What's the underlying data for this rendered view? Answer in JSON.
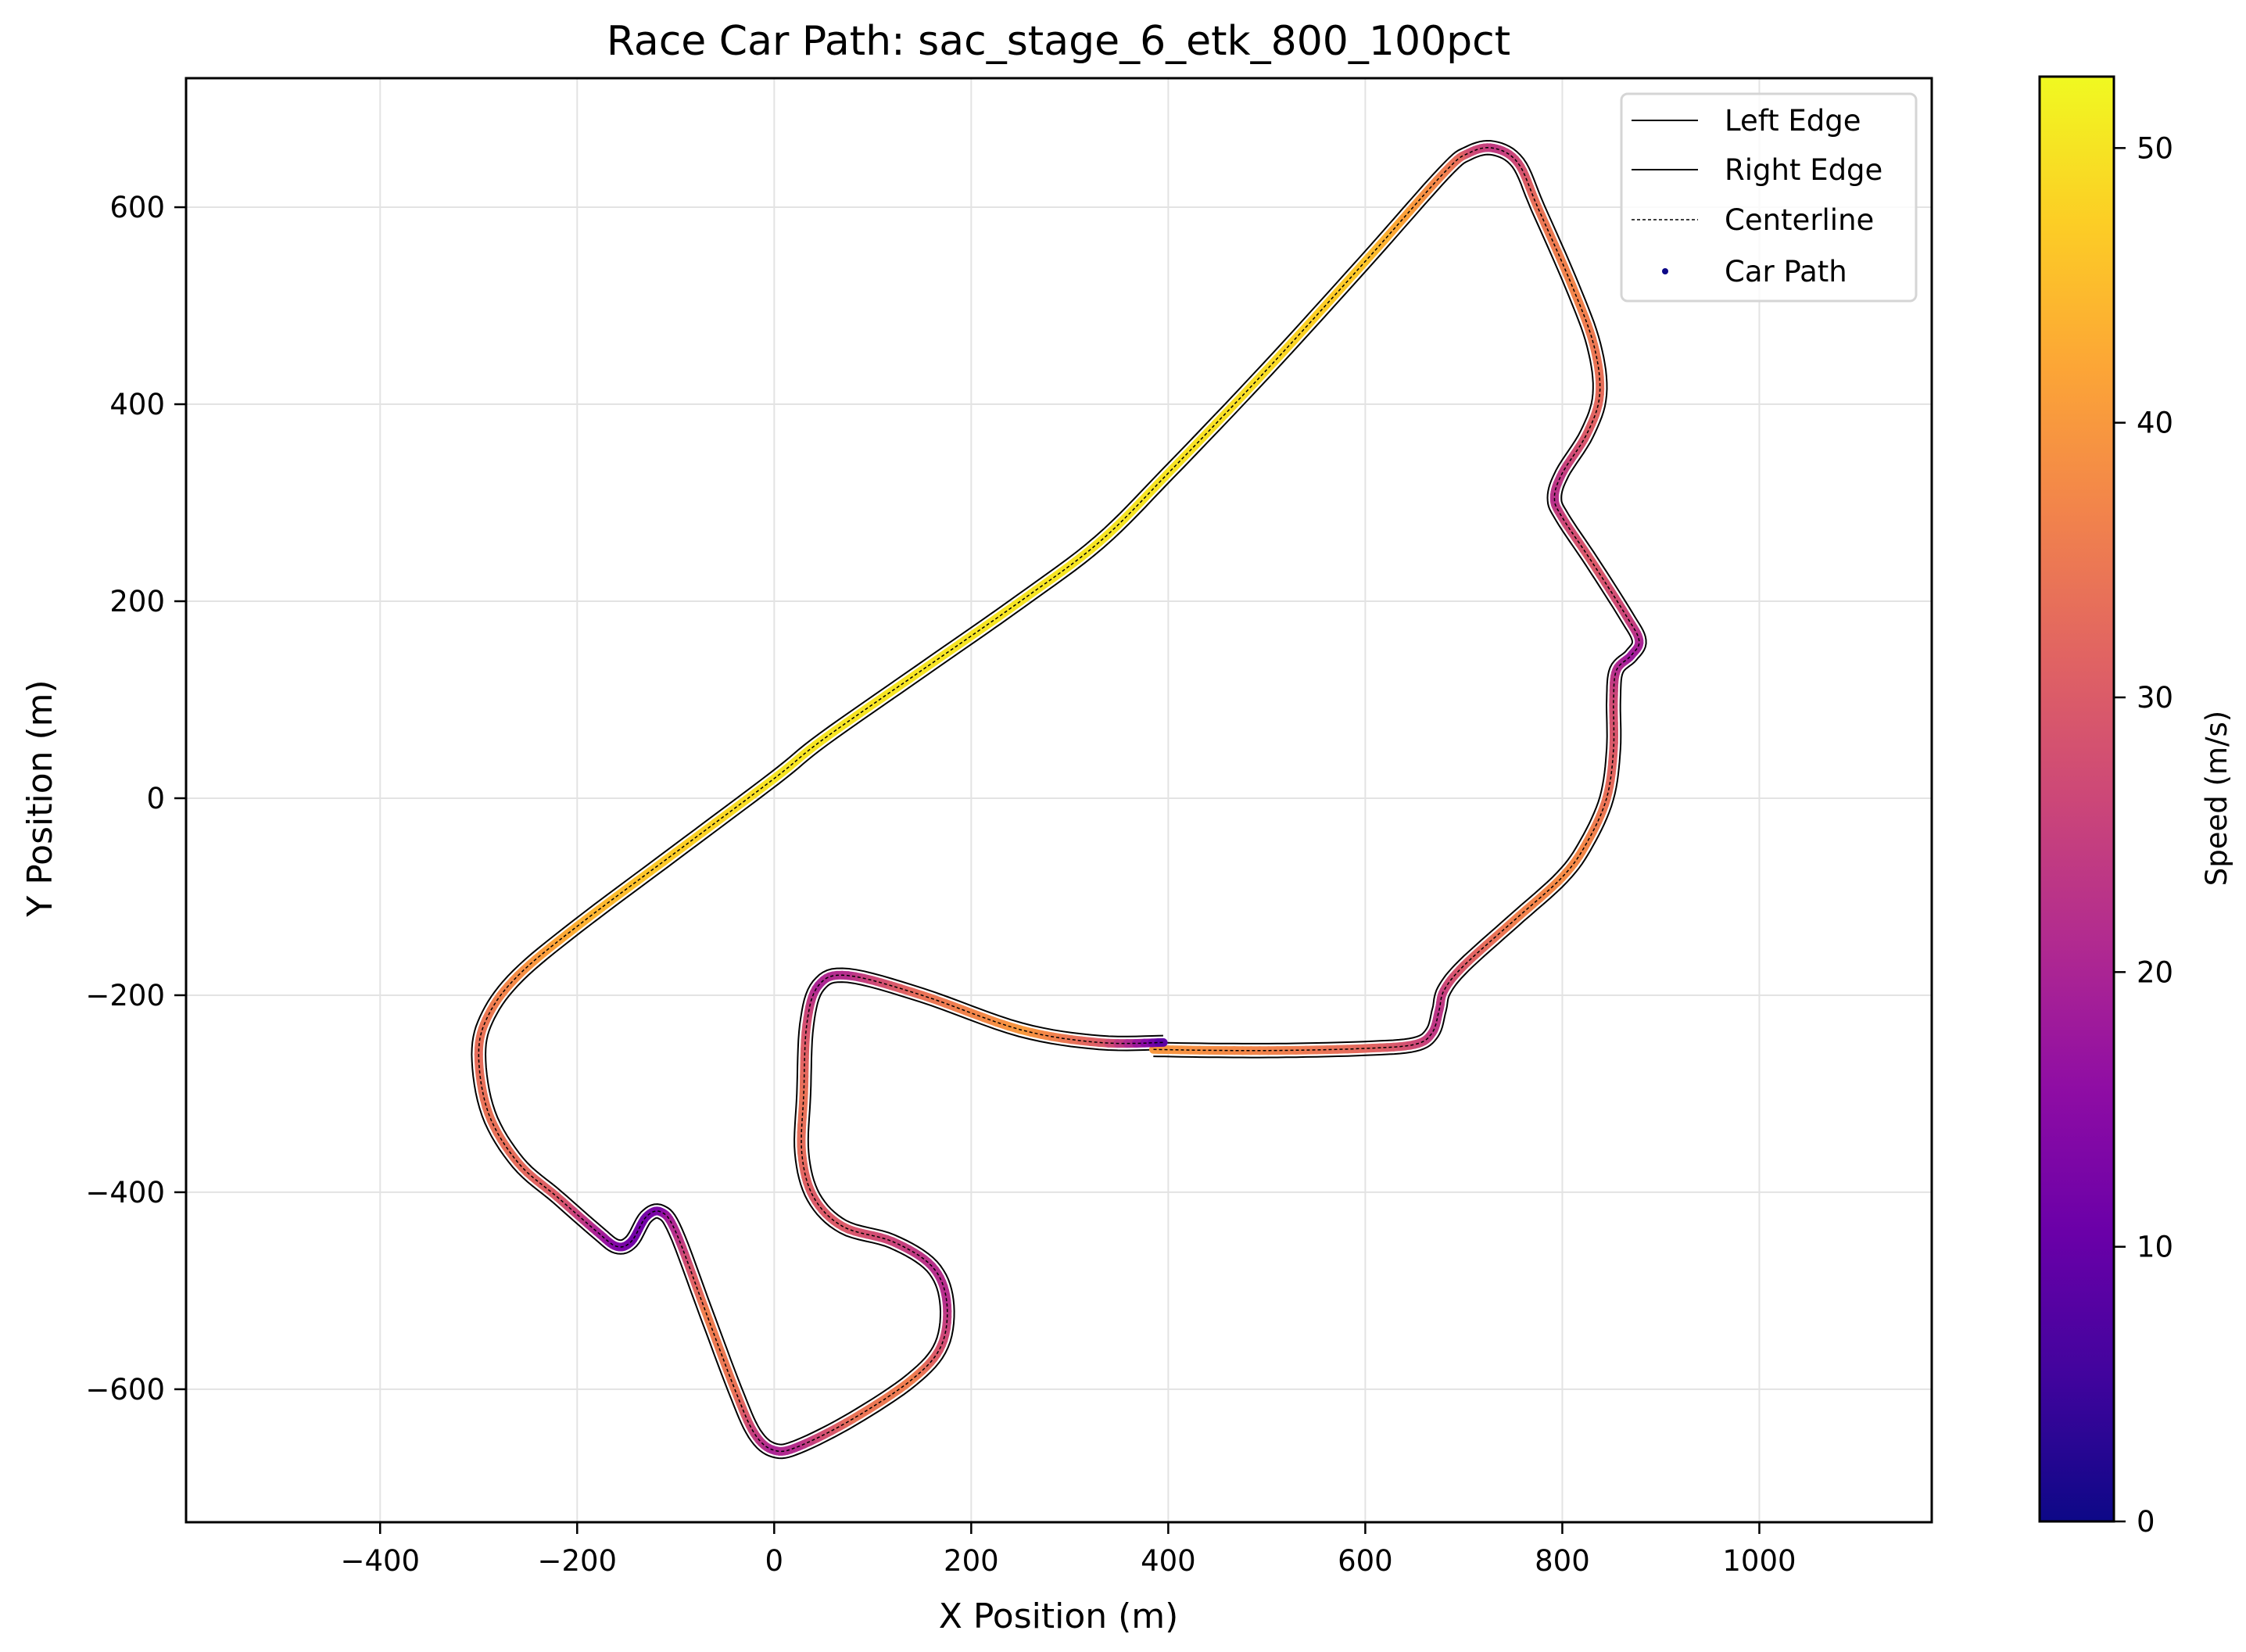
{
  "chart_data": {
    "type": "scatter",
    "title": "Race Car Path: sac_stage_6_etk_800_100pct",
    "xlabel": "X Position (m)",
    "ylabel": "Y Position (m)",
    "xlim": [
      -597,
      1175
    ],
    "ylim": [
      -735,
      731
    ],
    "xticks": [
      -400,
      -200,
      0,
      200,
      400,
      600,
      800,
      1000
    ],
    "xtick_labels": [
      "−400",
      "−200",
      "0",
      "200",
      "400",
      "600",
      "800",
      "1000"
    ],
    "yticks": [
      -600,
      -400,
      -200,
      0,
      200,
      400,
      600
    ],
    "ytick_labels": [
      "−600",
      "−400",
      "−200",
      "0",
      "200",
      "400",
      "600"
    ],
    "grid": true,
    "legend": {
      "position": "upper right",
      "entries": [
        {
          "label": "Left Edge",
          "style": "solid-line",
          "color": "#000000"
        },
        {
          "label": "Right Edge",
          "style": "solid-line",
          "color": "#000000"
        },
        {
          "label": "Centerline",
          "style": "dashed-line",
          "color": "#000000"
        },
        {
          "label": "Car Path",
          "style": "dot",
          "color": "#0d0887"
        }
      ]
    },
    "colorbar": {
      "label": "Speed (m/s)",
      "colormap": "plasma",
      "range": [
        0,
        52.6
      ],
      "ticks": [
        0,
        10,
        20,
        30,
        40,
        50
      ]
    },
    "track_width_m": 14,
    "series": [
      {
        "name": "Car Path",
        "note": "centerline waypoints (x m, y m, speed m/s), approximate reading",
        "points": [
          [
            385,
            -255,
            40
          ],
          [
            450,
            -256,
            38
          ],
          [
            520,
            -256,
            36
          ],
          [
            600,
            -254,
            32
          ],
          [
            650,
            -250,
            27
          ],
          [
            668,
            -238,
            24
          ],
          [
            675,
            -215,
            23
          ],
          [
            680,
            -195,
            25
          ],
          [
            700,
            -170,
            30
          ],
          [
            750,
            -125,
            36
          ],
          [
            800,
            -80,
            38
          ],
          [
            825,
            -45,
            37
          ],
          [
            845,
            0,
            34
          ],
          [
            852,
            50,
            30
          ],
          [
            852,
            100,
            27
          ],
          [
            855,
            130,
            22
          ],
          [
            870,
            145,
            18
          ],
          [
            878,
            160,
            20
          ],
          [
            865,
            185,
            26
          ],
          [
            830,
            240,
            30
          ],
          [
            800,
            285,
            26
          ],
          [
            792,
            305,
            22
          ],
          [
            800,
            330,
            24
          ],
          [
            825,
            370,
            30
          ],
          [
            838,
            410,
            33
          ],
          [
            832,
            460,
            35
          ],
          [
            810,
            520,
            37
          ],
          [
            775,
            600,
            34
          ],
          [
            755,
            645,
            27
          ],
          [
            730,
            660,
            24
          ],
          [
            705,
            655,
            27
          ],
          [
            680,
            635,
            36
          ],
          [
            600,
            545,
            46
          ],
          [
            500,
            435,
            49
          ],
          [
            400,
            330,
            50
          ],
          [
            330,
            260,
            50
          ],
          [
            250,
            200,
            50
          ],
          [
            150,
            130,
            50
          ],
          [
            50,
            60,
            50
          ],
          [
            0,
            20,
            50
          ],
          [
            -100,
            -55,
            47
          ],
          [
            -200,
            -130,
            43
          ],
          [
            -260,
            -180,
            38
          ],
          [
            -290,
            -220,
            35
          ],
          [
            -300,
            -260,
            33
          ],
          [
            -290,
            -320,
            34
          ],
          [
            -260,
            -370,
            33
          ],
          [
            -220,
            -405,
            30
          ],
          [
            -180,
            -440,
            20
          ],
          [
            -160,
            -455,
            14
          ],
          [
            -145,
            -450,
            12
          ],
          [
            -130,
            -425,
            12
          ],
          [
            -115,
            -420,
            13
          ],
          [
            -100,
            -440,
            22
          ],
          [
            -70,
            -520,
            36
          ],
          [
            -40,
            -600,
            34
          ],
          [
            -20,
            -645,
            25
          ],
          [
            0,
            -662,
            20
          ],
          [
            25,
            -658,
            22
          ],
          [
            80,
            -630,
            34
          ],
          [
            140,
            -590,
            36
          ],
          [
            170,
            -555,
            28
          ],
          [
            175,
            -510,
            22
          ],
          [
            160,
            -475,
            22
          ],
          [
            120,
            -450,
            26
          ],
          [
            70,
            -435,
            30
          ],
          [
            40,
            -405,
            30
          ],
          [
            28,
            -360,
            33
          ],
          [
            30,
            -300,
            34
          ],
          [
            33,
            -230,
            28
          ],
          [
            45,
            -190,
            20
          ],
          [
            75,
            -180,
            22
          ],
          [
            150,
            -200,
            34
          ],
          [
            250,
            -235,
            40
          ],
          [
            330,
            -248,
            30
          ],
          [
            395,
            -248,
            6
          ]
        ]
      }
    ]
  },
  "plot": {
    "title": "Race Car Path: sac_stage_6_etk_800_100pct",
    "xlabel": "X Position (m)",
    "ylabel": "Y Position (m)",
    "colorbar_label": "Speed (m/s)",
    "colorbar_ticks": [
      "0",
      "10",
      "20",
      "30",
      "40",
      "50"
    ],
    "legend": [
      "Left Edge",
      "Right Edge",
      "Centerline",
      "Car Path"
    ]
  }
}
